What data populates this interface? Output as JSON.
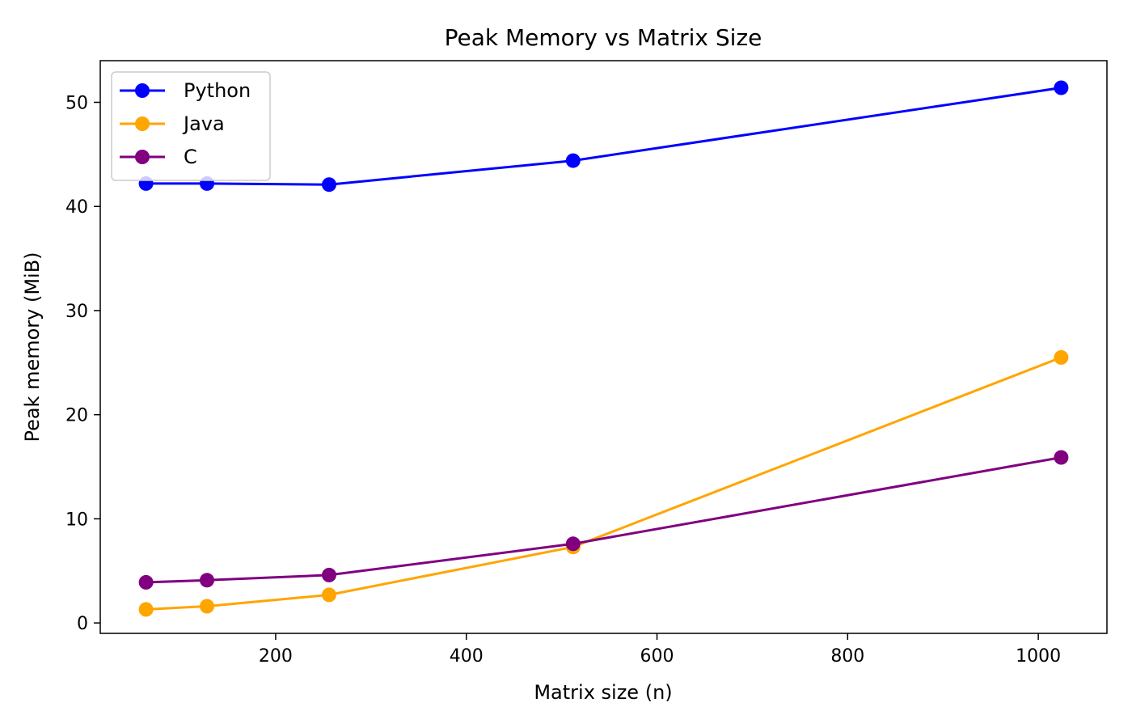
{
  "chart_data": {
    "type": "line",
    "title": "Peak Memory vs Matrix Size",
    "xlabel": "Matrix size (n)",
    "ylabel": "Peak memory (MiB)",
    "xlim": [
      16,
      1072
    ],
    "ylim": [
      -1,
      54
    ],
    "xticks": [
      200,
      400,
      600,
      800,
      1000
    ],
    "yticks": [
      0,
      10,
      20,
      30,
      40,
      50
    ],
    "x": [
      64,
      128,
      256,
      512,
      1024
    ],
    "series": [
      {
        "name": "Python",
        "color": "#0000ff",
        "values": [
          42.2,
          42.2,
          42.1,
          44.4,
          51.4
        ]
      },
      {
        "name": "Java",
        "color": "#ffa500",
        "values": [
          1.3,
          1.6,
          2.7,
          7.3,
          25.5
        ]
      },
      {
        "name": "C",
        "color": "#800080",
        "values": [
          3.9,
          4.1,
          4.6,
          7.6,
          15.9
        ]
      }
    ],
    "legend": "top-left",
    "grid": false
  }
}
